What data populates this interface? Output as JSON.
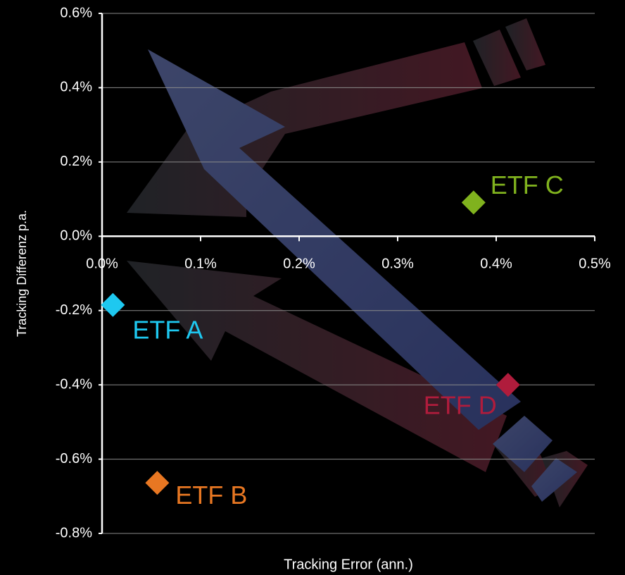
{
  "chart_data": {
    "type": "scatter",
    "x_label": "Tracking Error (ann.)",
    "y_label": "Tracking Differenz p.a.",
    "series": [
      {
        "name": "ETF A",
        "color": "#1ec8f0",
        "x": [
          0.011
        ],
        "y": [
          -0.185
        ]
      },
      {
        "name": "ETF B",
        "color": "#e87722",
        "x": [
          0.056
        ],
        "y": [
          -0.664
        ]
      },
      {
        "name": "ETF C",
        "color": "#80b21e",
        "x": [
          0.377
        ],
        "y": [
          0.091
        ]
      },
      {
        "name": "ETF D",
        "color": "#b01c3c",
        "x": [
          0.412
        ],
        "y": [
          -0.4
        ]
      }
    ],
    "xlim": [
      0,
      0.5
    ],
    "ylim": [
      -0.8,
      0.6
    ],
    "xticks": [
      {
        "value": 0,
        "label": "0.0%"
      },
      {
        "value": 0.1,
        "label": "0.1%"
      },
      {
        "value": 0.2,
        "label": "0.2%"
      },
      {
        "value": 0.3,
        "label": "0.3%"
      },
      {
        "value": 0.4,
        "label": "0.4%"
      },
      {
        "value": 0.5,
        "label": "0.5%"
      }
    ],
    "yticks": [
      {
        "value": -0.8,
        "label": "-0.8%"
      },
      {
        "value": -0.6,
        "label": "-0.6%"
      },
      {
        "value": -0.4,
        "label": "-0.4%"
      },
      {
        "value": -0.2,
        "label": "-0.2%"
      },
      {
        "value": 0,
        "label": "0.0%"
      },
      {
        "value": 0.2,
        "label": "0.2%"
      },
      {
        "value": 0.4,
        "label": "0.4%"
      },
      {
        "value": 0.6,
        "label": "0.6%"
      }
    ],
    "grid": true
  }
}
